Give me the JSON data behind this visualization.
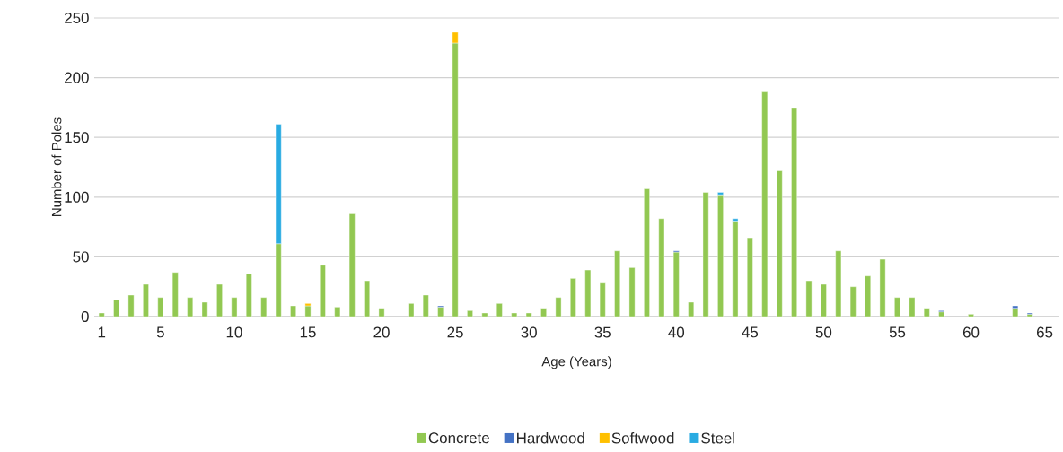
{
  "chart_data": {
    "type": "bar",
    "stacked": true,
    "xlabel": "Age (Years)",
    "ylabel": "Number of Poles",
    "x": [
      1,
      2,
      3,
      4,
      5,
      6,
      7,
      8,
      9,
      10,
      11,
      12,
      13,
      14,
      15,
      16,
      17,
      18,
      19,
      20,
      21,
      22,
      23,
      24,
      25,
      26,
      27,
      28,
      29,
      30,
      31,
      32,
      33,
      34,
      35,
      36,
      37,
      38,
      39,
      40,
      41,
      42,
      43,
      44,
      45,
      46,
      47,
      48,
      49,
      50,
      51,
      52,
      53,
      54,
      55,
      56,
      57,
      58,
      59,
      60,
      61,
      62,
      63,
      64
    ],
    "series": [
      {
        "name": "Concrete",
        "color": "#92c852",
        "values": [
          3,
          14,
          18,
          27,
          16,
          37,
          16,
          12,
          27,
          16,
          36,
          16,
          61,
          9,
          9,
          43,
          8,
          86,
          30,
          7,
          null,
          11,
          18,
          8,
          229,
          5,
          3,
          11,
          3,
          3,
          7,
          16,
          32,
          39,
          28,
          55,
          41,
          107,
          82,
          54,
          12,
          104,
          102,
          80,
          66,
          188,
          122,
          175,
          30,
          27,
          55,
          25,
          34,
          48,
          16,
          16,
          7,
          4,
          null,
          2,
          null,
          null,
          7,
          2
        ]
      },
      {
        "name": "Hardwood",
        "color": "#4472c4",
        "values": [
          null,
          null,
          null,
          null,
          null,
          null,
          null,
          null,
          null,
          null,
          null,
          null,
          null,
          null,
          null,
          null,
          null,
          null,
          null,
          null,
          null,
          null,
          null,
          1,
          null,
          null,
          null,
          null,
          null,
          null,
          null,
          null,
          null,
          null,
          null,
          null,
          null,
          null,
          null,
          1,
          null,
          null,
          null,
          null,
          null,
          null,
          null,
          null,
          null,
          null,
          null,
          null,
          null,
          null,
          null,
          null,
          null,
          1,
          null,
          null,
          null,
          null,
          2,
          1
        ]
      },
      {
        "name": "Softwood",
        "color": "#ffc000",
        "values": [
          null,
          null,
          null,
          null,
          null,
          null,
          null,
          null,
          null,
          null,
          null,
          null,
          null,
          null,
          2,
          null,
          null,
          null,
          null,
          null,
          null,
          null,
          null,
          null,
          9,
          null,
          null,
          null,
          null,
          null,
          null,
          null,
          null,
          null,
          null,
          null,
          null,
          null,
          null,
          null,
          null,
          null,
          null,
          null,
          null,
          null,
          null,
          null,
          null,
          null,
          null,
          null,
          null,
          null,
          null,
          null,
          null,
          null,
          null,
          null,
          null,
          null,
          null,
          null
        ]
      },
      {
        "name": "Steel",
        "color": "#29abe2",
        "values": [
          null,
          null,
          null,
          null,
          null,
          null,
          null,
          null,
          null,
          null,
          null,
          null,
          100,
          null,
          null,
          null,
          null,
          null,
          null,
          null,
          null,
          null,
          null,
          null,
          null,
          null,
          null,
          null,
          null,
          null,
          null,
          null,
          null,
          null,
          null,
          null,
          null,
          null,
          null,
          null,
          null,
          null,
          2,
          2,
          null,
          null,
          null,
          null,
          null,
          null,
          null,
          null,
          null,
          null,
          null,
          null,
          null,
          null,
          null,
          null,
          null,
          null,
          null,
          null
        ]
      }
    ],
    "xlim": [
      0.5,
      66
    ],
    "xticks": [
      1,
      5,
      10,
      15,
      20,
      25,
      30,
      35,
      40,
      45,
      50,
      55,
      60,
      65
    ],
    "ylim": [
      0,
      250
    ],
    "yticks": [
      0,
      50,
      100,
      150,
      200,
      250
    ],
    "grid": "y",
    "legend": "bottom"
  }
}
